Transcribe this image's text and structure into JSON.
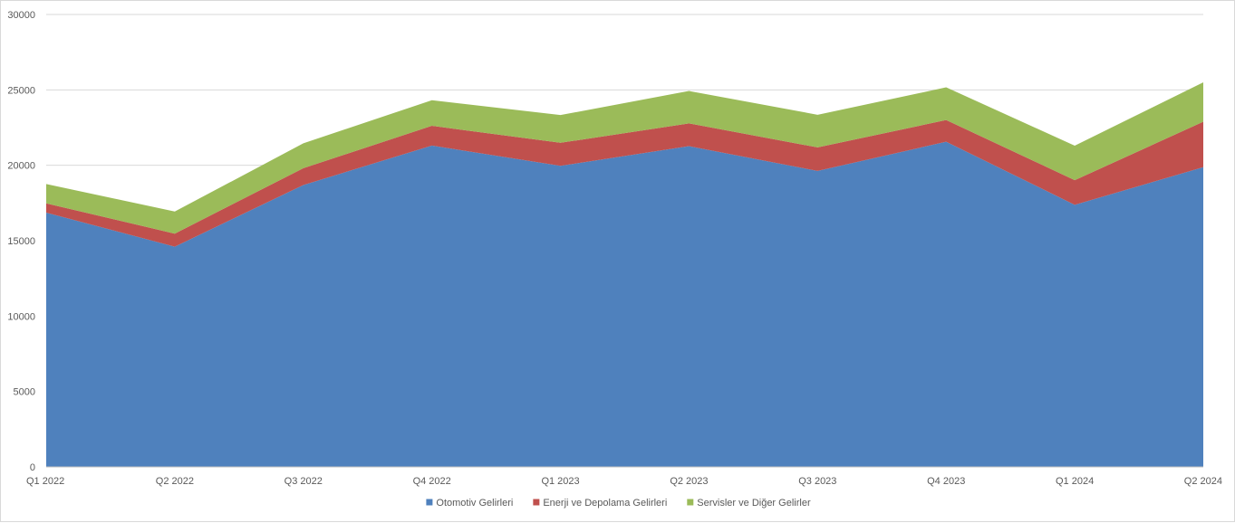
{
  "chart_data": {
    "type": "area",
    "stacked": true,
    "categories": [
      "Q1 2022",
      "Q2 2022",
      "Q3 2022",
      "Q4 2022",
      "Q1 2023",
      "Q2 2023",
      "Q3 2023",
      "Q4 2023",
      "Q1 2024",
      "Q2 2024"
    ],
    "series": [
      {
        "name": "Otomotiv Gelirleri",
        "color": "#4f81bd",
        "values": [
          16861,
          14602,
          18692,
          21307,
          19963,
          21268,
          19625,
          21563,
          17378,
          19878
        ]
      },
      {
        "name": "Enerji ve Depolama Gelirleri",
        "color": "#c0504d",
        "values": [
          616,
          866,
          1117,
          1310,
          1529,
          1509,
          1559,
          1438,
          1635,
          3014
        ]
      },
      {
        "name": "Servisler ve Diğer Gelirler",
        "color": "#9bbb59",
        "values": [
          1279,
          1466,
          1645,
          1701,
          1837,
          2150,
          2166,
          2166,
          2288,
          2608
        ]
      }
    ],
    "ylim": [
      0,
      30000
    ],
    "yticks": [
      "0",
      "5000",
      "10000",
      "15000",
      "20000",
      "25000",
      "30000"
    ],
    "grid": true,
    "legend": "bottom",
    "title": "",
    "xlabel": "",
    "ylabel": ""
  }
}
